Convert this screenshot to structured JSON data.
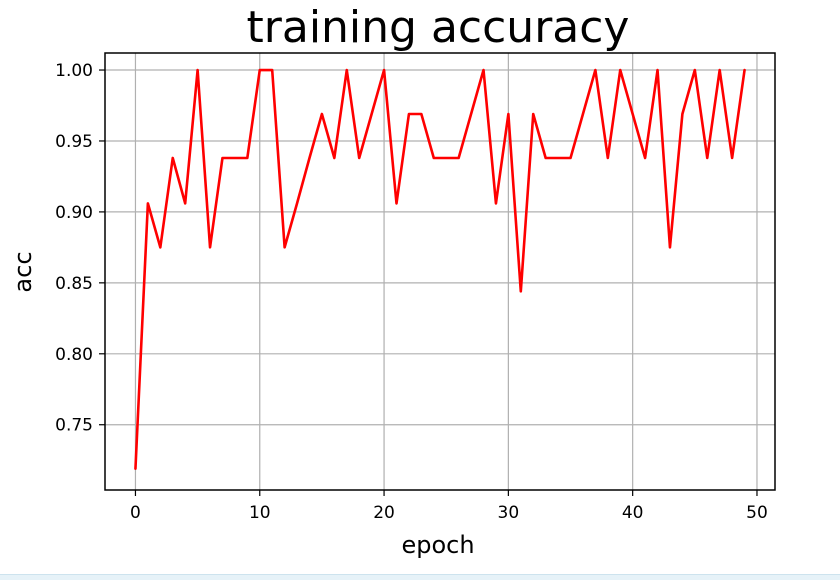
{
  "chart_data": {
    "type": "line",
    "title": "training accuracy",
    "xlabel": "epoch",
    "ylabel": "acc",
    "xlim": [
      -2.45,
      51.45
    ],
    "ylim": [
      0.704,
      1.012
    ],
    "xticks": [
      0,
      10,
      20,
      30,
      40,
      50
    ],
    "yticks": [
      0.75,
      0.8,
      0.85,
      0.9,
      0.95,
      1.0
    ],
    "xtick_labels": [
      "0",
      "10",
      "20",
      "30",
      "40",
      "50"
    ],
    "ytick_labels": [
      "0.75",
      "0.80",
      "0.85",
      "0.90",
      "0.95",
      "1.00"
    ],
    "grid": true,
    "series": [
      {
        "color": "#ff0000",
        "x": [
          0,
          1,
          2,
          3,
          4,
          5,
          6,
          7,
          8,
          9,
          10,
          11,
          12,
          13,
          14,
          15,
          16,
          17,
          18,
          19,
          20,
          21,
          22,
          23,
          24,
          25,
          26,
          27,
          28,
          29,
          30,
          31,
          32,
          33,
          34,
          35,
          36,
          37,
          38,
          39,
          40,
          41,
          42,
          43,
          44,
          45,
          46,
          47,
          48,
          49
        ],
        "values": [
          0.719,
          0.906,
          0.875,
          0.938,
          0.906,
          1.0,
          0.875,
          0.938,
          0.938,
          0.938,
          1.0,
          1.0,
          0.875,
          0.906,
          0.938,
          0.969,
          0.938,
          1.0,
          0.938,
          0.969,
          1.0,
          0.906,
          0.969,
          0.969,
          0.938,
          0.938,
          0.938,
          0.969,
          1.0,
          0.906,
          0.969,
          0.844,
          0.969,
          0.938,
          0.938,
          0.938,
          0.969,
          1.0,
          0.938,
          1.0,
          0.969,
          0.938,
          1.0,
          0.875,
          0.969,
          1.0,
          0.938,
          1.0,
          0.938,
          1.0
        ]
      }
    ]
  }
}
